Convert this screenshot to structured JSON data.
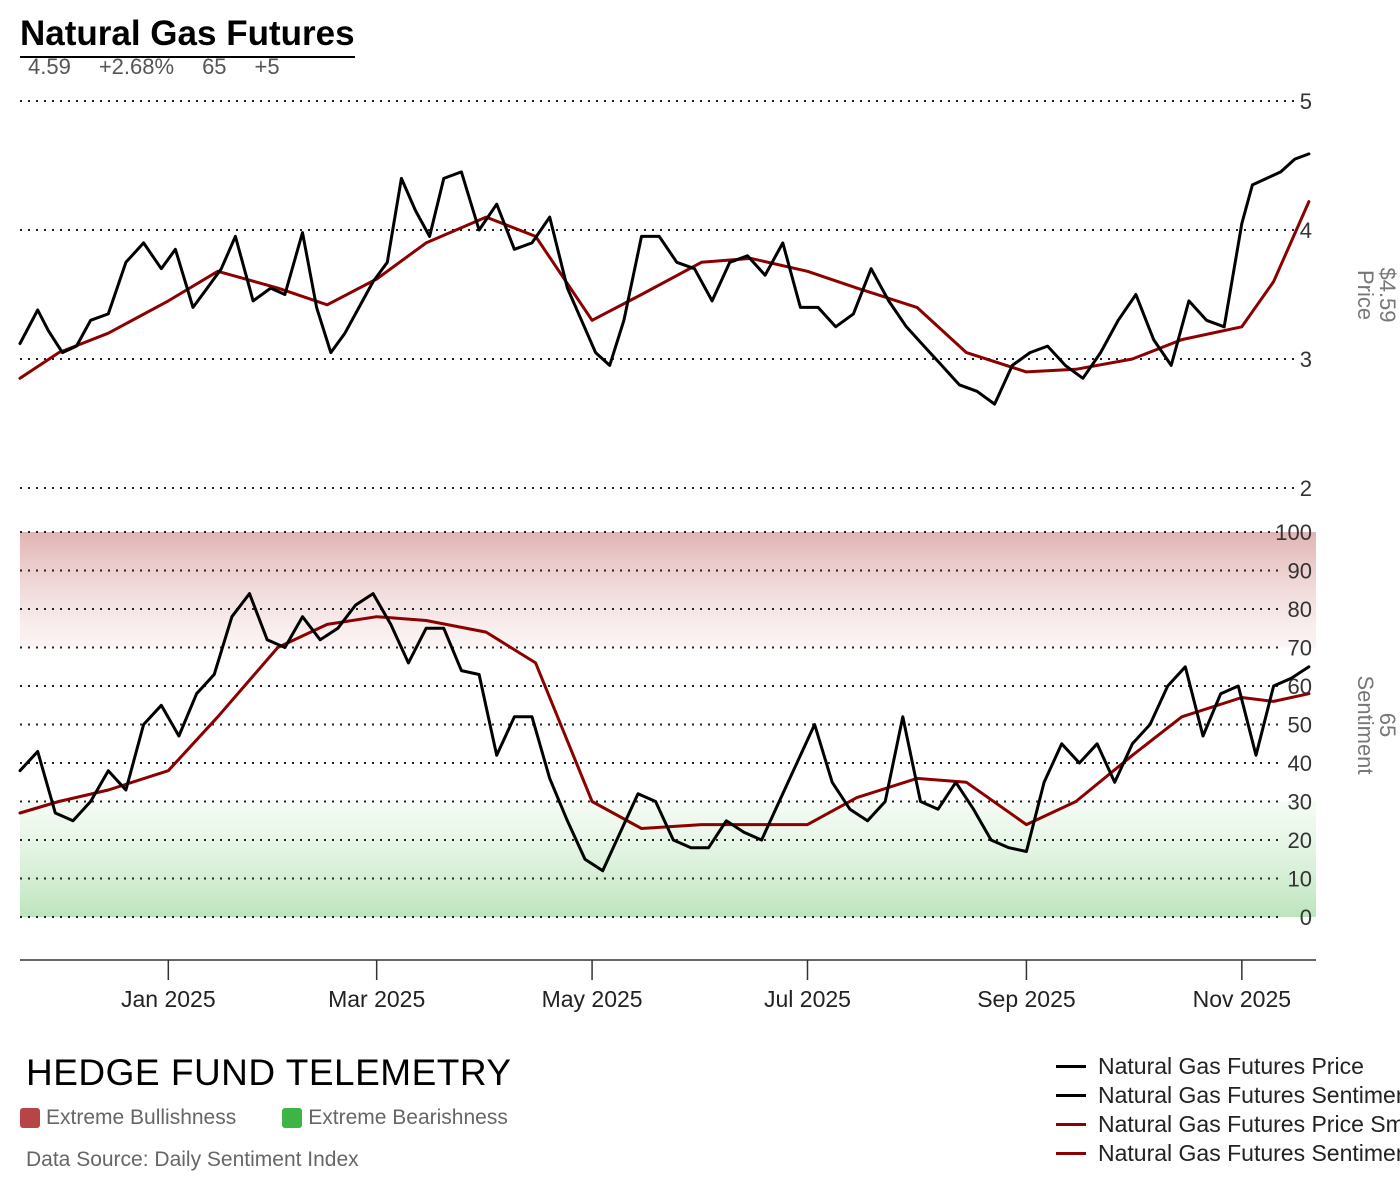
{
  "title": "Natural Gas Futures",
  "stats": {
    "price": "4.59",
    "change": "+2.68%",
    "sentiment": "65",
    "sentiment_change": "+5"
  },
  "colors": {
    "price_line": "#000000",
    "sentiment_line": "#000000",
    "smooth_line": "#8b0000",
    "bullish_zone": "#c24848",
    "bearish_zone": "#3fb54a"
  },
  "branding": {
    "name": "HEDGE FUND TELEMETRY",
    "zones": [
      {
        "label": "Extreme Bullishness",
        "color": "#b84545"
      },
      {
        "label": "Extreme Bearishness",
        "color": "#3db545"
      }
    ],
    "source": "Data Source: Daily Sentiment Index"
  },
  "legend": [
    {
      "label": "Natural Gas Futures Price",
      "color": "#000000"
    },
    {
      "label": "Natural Gas Futures Sentiment",
      "color": "#000000"
    },
    {
      "label": "Natural Gas Futures Price Smoothed",
      "color": "#8b0000"
    },
    {
      "label": "Natural Gas Futures Sentiment Smoothed",
      "color": "#8b0000"
    }
  ],
  "chart_data": [
    {
      "type": "line",
      "panel": "price",
      "ylabel": "Price",
      "current_label": "$4.59",
      "ylim": [
        2,
        5
      ],
      "yticks": [
        2,
        3,
        4,
        5
      ],
      "xlim": [
        "2024-11-20",
        "2025-11-22"
      ],
      "xticks": [
        "2025-01-01",
        "2025-03-01",
        "2025-05-01",
        "2025-07-01",
        "2025-09-01",
        "2025-11-01"
      ],
      "xtick_labels": [
        "Jan 2025",
        "Mar 2025",
        "May 2025",
        "Jul 2025",
        "Sep 2025",
        "Nov 2025"
      ],
      "grid": true,
      "series": [
        {
          "name": "Natural Gas Futures Price",
          "color": "#000000",
          "x": [
            "2024-11-20",
            "2024-11-25",
            "2024-11-28",
            "2024-12-02",
            "2024-12-06",
            "2024-12-10",
            "2024-12-15",
            "2024-12-20",
            "2024-12-25",
            "2024-12-30",
            "2025-01-03",
            "2025-01-08",
            "2025-01-12",
            "2025-01-16",
            "2025-01-20",
            "2025-01-25",
            "2025-01-30",
            "2025-02-03",
            "2025-02-08",
            "2025-02-12",
            "2025-02-16",
            "2025-02-20",
            "2025-02-24",
            "2025-02-28",
            "2025-03-04",
            "2025-03-08",
            "2025-03-12",
            "2025-03-16",
            "2025-03-20",
            "2025-03-25",
            "2025-03-30",
            "2025-04-04",
            "2025-04-09",
            "2025-04-14",
            "2025-04-19",
            "2025-04-24",
            "2025-04-28",
            "2025-05-02",
            "2025-05-06",
            "2025-05-10",
            "2025-05-15",
            "2025-05-20",
            "2025-05-25",
            "2025-05-30",
            "2025-06-04",
            "2025-06-09",
            "2025-06-14",
            "2025-06-19",
            "2025-06-24",
            "2025-06-29",
            "2025-07-04",
            "2025-07-09",
            "2025-07-14",
            "2025-07-19",
            "2025-07-24",
            "2025-07-29",
            "2025-08-03",
            "2025-08-08",
            "2025-08-13",
            "2025-08-18",
            "2025-08-23",
            "2025-08-28",
            "2025-09-02",
            "2025-09-07",
            "2025-09-12",
            "2025-09-17",
            "2025-09-22",
            "2025-09-27",
            "2025-10-02",
            "2025-10-07",
            "2025-10-12",
            "2025-10-17",
            "2025-10-22",
            "2025-10-27",
            "2025-11-01",
            "2025-11-04",
            "2025-11-08",
            "2025-11-12",
            "2025-11-16",
            "2025-11-20"
          ],
          "y": [
            3.12,
            3.38,
            3.22,
            3.05,
            3.1,
            3.3,
            3.35,
            3.75,
            3.9,
            3.7,
            3.85,
            3.4,
            3.55,
            3.7,
            3.95,
            3.45,
            3.55,
            3.5,
            3.98,
            3.4,
            3.05,
            3.2,
            3.4,
            3.6,
            3.75,
            4.4,
            4.15,
            3.95,
            4.4,
            4.45,
            4.0,
            4.2,
            3.85,
            3.9,
            4.1,
            3.55,
            3.3,
            3.05,
            2.95,
            3.3,
            3.95,
            3.95,
            3.75,
            3.7,
            3.45,
            3.75,
            3.8,
            3.65,
            3.9,
            3.4,
            3.4,
            3.25,
            3.35,
            3.7,
            3.45,
            3.25,
            3.1,
            2.95,
            2.8,
            2.75,
            2.65,
            2.95,
            3.05,
            3.1,
            2.95,
            2.85,
            3.05,
            3.3,
            3.5,
            3.15,
            2.95,
            3.45,
            3.3,
            3.25,
            4.05,
            4.35,
            4.4,
            4.45,
            4.55,
            4.59
          ]
        },
        {
          "name": "Natural Gas Futures Price Smoothed",
          "color": "#8b0000",
          "x": [
            "2024-11-20",
            "2024-12-01",
            "2024-12-15",
            "2025-01-01",
            "2025-01-15",
            "2025-02-01",
            "2025-02-15",
            "2025-03-01",
            "2025-03-15",
            "2025-04-01",
            "2025-04-15",
            "2025-05-01",
            "2025-05-15",
            "2025-06-01",
            "2025-06-15",
            "2025-07-01",
            "2025-07-15",
            "2025-08-01",
            "2025-08-15",
            "2025-09-01",
            "2025-09-15",
            "2025-10-01",
            "2025-10-15",
            "2025-11-01",
            "2025-11-10",
            "2025-11-20"
          ],
          "y": [
            2.85,
            3.05,
            3.2,
            3.45,
            3.68,
            3.55,
            3.42,
            3.62,
            3.9,
            4.1,
            3.95,
            3.3,
            3.5,
            3.75,
            3.78,
            3.68,
            3.55,
            3.4,
            3.05,
            2.9,
            2.92,
            3.0,
            3.15,
            3.25,
            3.6,
            4.22
          ]
        }
      ]
    },
    {
      "type": "line",
      "panel": "sentiment",
      "ylabel": "Sentiment",
      "current_label": "65",
      "ylim": [
        0,
        100
      ],
      "yticks": [
        0,
        10,
        20,
        30,
        40,
        50,
        60,
        70,
        80,
        90,
        100
      ],
      "xlim": [
        "2024-11-20",
        "2025-11-22"
      ],
      "zones": [
        {
          "name": "Extreme Bullishness",
          "from": 70,
          "to": 100
        },
        {
          "name": "Extreme Bearishness",
          "from": 0,
          "to": 30
        }
      ],
      "grid": true,
      "series": [
        {
          "name": "Natural Gas Futures Sentiment",
          "color": "#000000",
          "x": [
            "2024-11-20",
            "2024-11-25",
            "2024-11-30",
            "2024-12-05",
            "2024-12-10",
            "2024-12-15",
            "2024-12-20",
            "2024-12-25",
            "2024-12-30",
            "2025-01-04",
            "2025-01-09",
            "2025-01-14",
            "2025-01-19",
            "2025-01-24",
            "2025-01-29",
            "2025-02-03",
            "2025-02-08",
            "2025-02-13",
            "2025-02-18",
            "2025-02-23",
            "2025-02-28",
            "2025-03-05",
            "2025-03-10",
            "2025-03-15",
            "2025-03-20",
            "2025-03-25",
            "2025-03-30",
            "2025-04-04",
            "2025-04-09",
            "2025-04-14",
            "2025-04-19",
            "2025-04-24",
            "2025-04-29",
            "2025-05-04",
            "2025-05-09",
            "2025-05-14",
            "2025-05-19",
            "2025-05-24",
            "2025-05-29",
            "2025-06-03",
            "2025-06-08",
            "2025-06-13",
            "2025-06-18",
            "2025-06-23",
            "2025-06-28",
            "2025-07-03",
            "2025-07-08",
            "2025-07-13",
            "2025-07-18",
            "2025-07-23",
            "2025-07-28",
            "2025-08-02",
            "2025-08-07",
            "2025-08-12",
            "2025-08-17",
            "2025-08-22",
            "2025-08-27",
            "2025-09-01",
            "2025-09-06",
            "2025-09-11",
            "2025-09-16",
            "2025-09-21",
            "2025-09-26",
            "2025-10-01",
            "2025-10-06",
            "2025-10-11",
            "2025-10-16",
            "2025-10-21",
            "2025-10-26",
            "2025-10-31",
            "2025-11-05",
            "2025-11-10",
            "2025-11-15",
            "2025-11-20"
          ],
          "y": [
            38,
            43,
            27,
            25,
            30,
            38,
            33,
            50,
            55,
            47,
            58,
            63,
            78,
            84,
            72,
            70,
            78,
            72,
            75,
            81,
            84,
            76,
            66,
            75,
            75,
            64,
            63,
            42,
            52,
            52,
            36,
            25,
            15,
            12,
            22,
            32,
            30,
            20,
            18,
            18,
            25,
            22,
            20,
            30,
            40,
            50,
            35,
            28,
            25,
            30,
            52,
            30,
            28,
            35,
            28,
            20,
            18,
            17,
            35,
            45,
            40,
            45,
            35,
            45,
            50,
            60,
            65,
            47,
            58,
            60,
            42,
            60,
            62,
            65
          ]
        },
        {
          "name": "Natural Gas Futures Sentiment Smoothed",
          "color": "#8b0000",
          "x": [
            "2024-11-20",
            "2024-12-01",
            "2024-12-15",
            "2025-01-01",
            "2025-01-15",
            "2025-02-01",
            "2025-02-15",
            "2025-03-01",
            "2025-03-15",
            "2025-04-01",
            "2025-04-15",
            "2025-05-01",
            "2025-05-15",
            "2025-06-01",
            "2025-06-15",
            "2025-07-01",
            "2025-07-15",
            "2025-08-01",
            "2025-08-15",
            "2025-09-01",
            "2025-09-15",
            "2025-10-01",
            "2025-10-15",
            "2025-11-01",
            "2025-11-10",
            "2025-11-20"
          ],
          "y": [
            27,
            30,
            33,
            38,
            52,
            70,
            76,
            78,
            77,
            74,
            66,
            30,
            23,
            24,
            24,
            24,
            31,
            36,
            35,
            24,
            30,
            42,
            52,
            57,
            56,
            58
          ]
        }
      ]
    }
  ]
}
